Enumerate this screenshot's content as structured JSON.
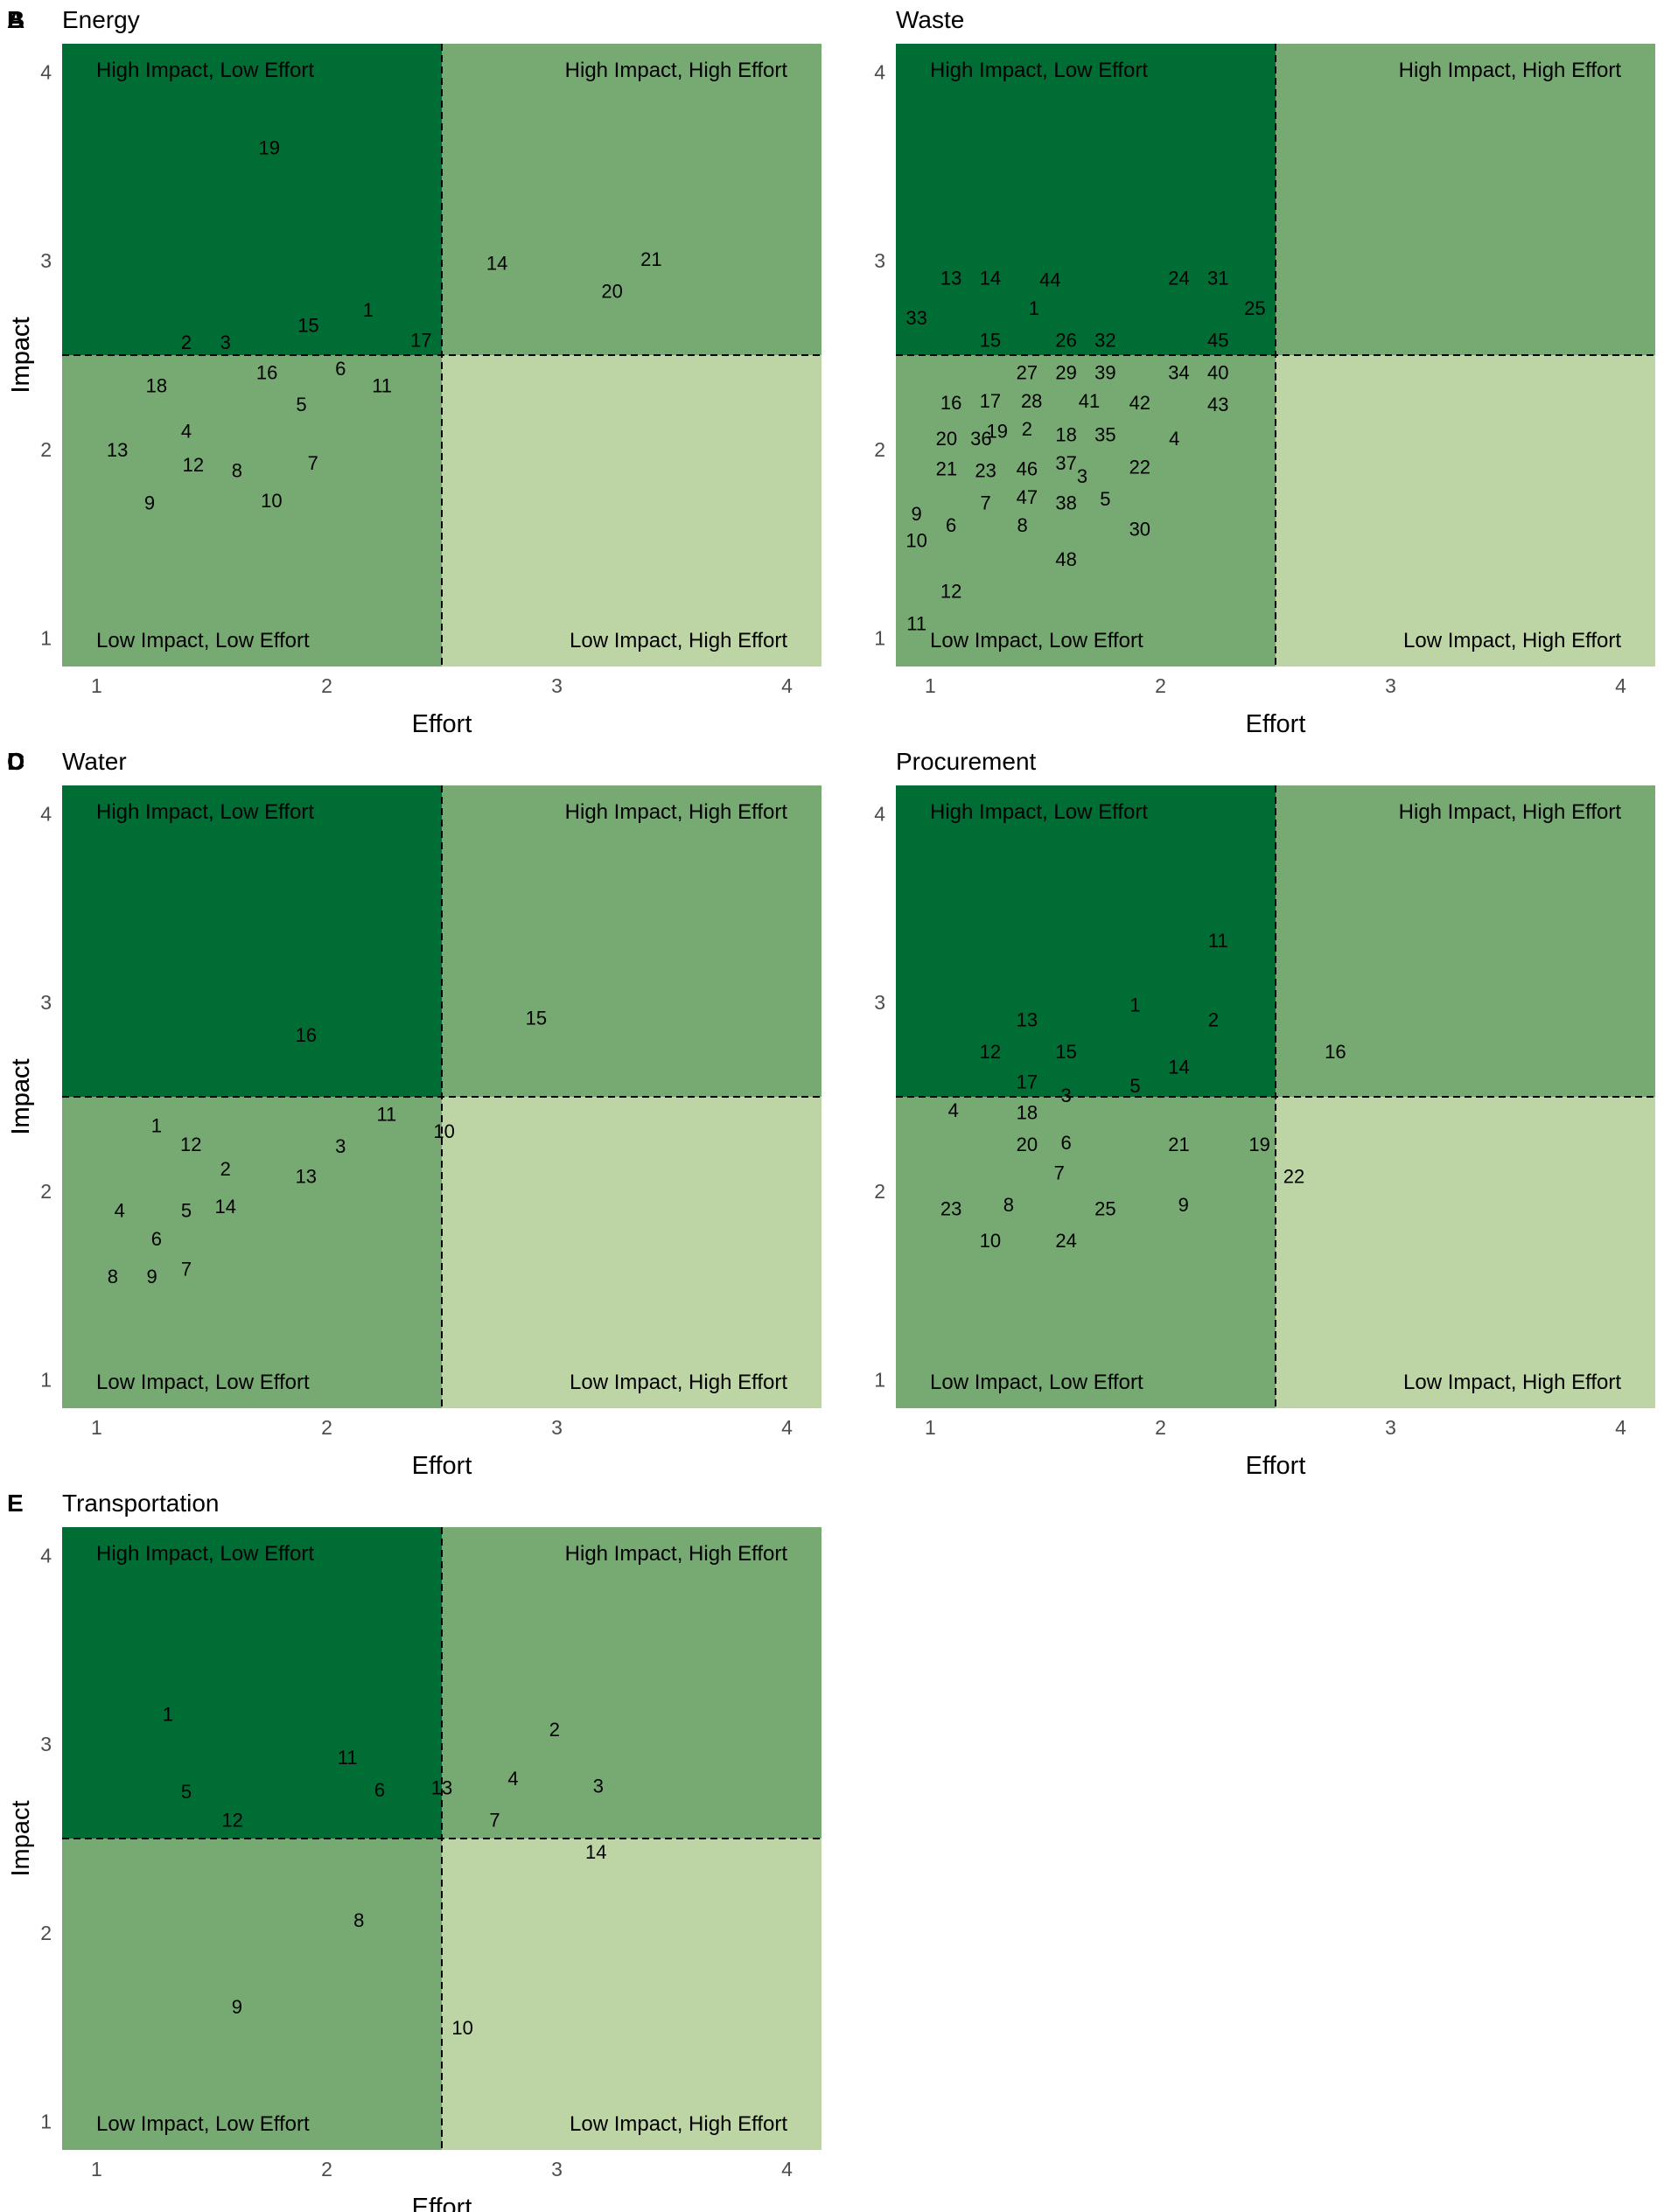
{
  "figure": {
    "colors": {
      "high_impact_low_effort": "#006d34",
      "high_impact_high_effort": "#77a972",
      "low_impact_low_effort": "#77a972",
      "low_impact_high_effort": "#bdd5a5",
      "divider": "#000000",
      "label_text": "#000000",
      "tick_text": "#4d4d4d"
    },
    "quadrant_labels": {
      "high_impact_low_effort": "High Impact, Low Effort",
      "high_impact_high_effort": "High Impact, High Effort",
      "low_impact_low_effort": "Low Impact, Low Effort",
      "low_impact_high_effort": "Low Impact, High Effort"
    }
  },
  "chart_data": [
    {
      "panel": "A",
      "title": "Energy",
      "type": "scatter",
      "xlabel": "Effort",
      "ylabel": "Impact",
      "xlim": [
        0.85,
        4.15
      ],
      "ylim": [
        0.85,
        4.15
      ],
      "xticks": [
        "1",
        "2",
        "3",
        "4"
      ],
      "yticks": [
        "1",
        "2",
        "3",
        "4"
      ],
      "x_divider": 2.5,
      "y_divider": 2.5,
      "grid": false,
      "points": [
        {
          "label": "1",
          "x": 2.18,
          "y": 2.74
        },
        {
          "label": "2",
          "x": 1.39,
          "y": 2.57
        },
        {
          "label": "3",
          "x": 1.56,
          "y": 2.57
        },
        {
          "label": "4",
          "x": 1.39,
          "y": 2.1
        },
        {
          "label": "5",
          "x": 1.89,
          "y": 2.24
        },
        {
          "label": "6",
          "x": 2.06,
          "y": 2.43
        },
        {
          "label": "7",
          "x": 1.94,
          "y": 1.93
        },
        {
          "label": "8",
          "x": 1.61,
          "y": 1.89
        },
        {
          "label": "9",
          "x": 1.23,
          "y": 1.72
        },
        {
          "label": "10",
          "x": 1.76,
          "y": 1.73
        },
        {
          "label": "11",
          "x": 2.24,
          "y": 2.34
        },
        {
          "label": "12",
          "x": 1.42,
          "y": 1.92
        },
        {
          "label": "13",
          "x": 1.09,
          "y": 2.0
        },
        {
          "label": "14",
          "x": 2.74,
          "y": 2.99
        },
        {
          "label": "15",
          "x": 1.92,
          "y": 2.66
        },
        {
          "label": "16",
          "x": 1.74,
          "y": 2.41
        },
        {
          "label": "17",
          "x": 2.41,
          "y": 2.58
        },
        {
          "label": "18",
          "x": 1.26,
          "y": 2.34
        },
        {
          "label": "19",
          "x": 1.75,
          "y": 3.6
        },
        {
          "label": "20",
          "x": 3.24,
          "y": 2.84
        },
        {
          "label": "21",
          "x": 3.41,
          "y": 3.01
        }
      ]
    },
    {
      "panel": "B",
      "title": "Waste",
      "type": "scatter",
      "xlabel": "Effort",
      "ylabel": "Impact",
      "xlim": [
        0.85,
        4.15
      ],
      "ylim": [
        0.85,
        4.15
      ],
      "xticks": [
        "1",
        "2",
        "3",
        "4"
      ],
      "yticks": [
        "1",
        "2",
        "3",
        "4"
      ],
      "x_divider": 2.5,
      "y_divider": 2.5,
      "grid": false,
      "points": [
        {
          "label": "1",
          "x": 1.45,
          "y": 2.75
        },
        {
          "label": "2",
          "x": 1.42,
          "y": 2.11
        },
        {
          "label": "3",
          "x": 1.66,
          "y": 1.86
        },
        {
          "label": "4",
          "x": 2.06,
          "y": 2.06
        },
        {
          "label": "5",
          "x": 1.76,
          "y": 1.74
        },
        {
          "label": "6",
          "x": 1.09,
          "y": 1.6
        },
        {
          "label": "7",
          "x": 1.24,
          "y": 1.72
        },
        {
          "label": "8",
          "x": 1.4,
          "y": 1.6
        },
        {
          "label": "9",
          "x": 0.94,
          "y": 1.66
        },
        {
          "label": "10",
          "x": 0.94,
          "y": 1.52
        },
        {
          "label": "11",
          "x": 0.94,
          "y": 1.08
        },
        {
          "label": "12",
          "x": 1.09,
          "y": 1.25
        },
        {
          "label": "13",
          "x": 1.09,
          "y": 2.91
        },
        {
          "label": "14",
          "x": 1.26,
          "y": 2.91
        },
        {
          "label": "15",
          "x": 1.26,
          "y": 2.58
        },
        {
          "label": "16",
          "x": 1.09,
          "y": 2.25
        },
        {
          "label": "17",
          "x": 1.26,
          "y": 2.26
        },
        {
          "label": "18",
          "x": 1.59,
          "y": 2.08
        },
        {
          "label": "19",
          "x": 1.29,
          "y": 2.1
        },
        {
          "label": "20",
          "x": 1.07,
          "y": 2.06
        },
        {
          "label": "21",
          "x": 1.07,
          "y": 1.9
        },
        {
          "label": "22",
          "x": 1.91,
          "y": 1.91
        },
        {
          "label": "23",
          "x": 1.24,
          "y": 1.89
        },
        {
          "label": "24",
          "x": 2.08,
          "y": 2.91
        },
        {
          "label": "25",
          "x": 2.41,
          "y": 2.75
        },
        {
          "label": "26",
          "x": 1.59,
          "y": 2.58
        },
        {
          "label": "27",
          "x": 1.42,
          "y": 2.41
        },
        {
          "label": "28",
          "x": 1.44,
          "y": 2.26
        },
        {
          "label": "29",
          "x": 1.59,
          "y": 2.41
        },
        {
          "label": "30",
          "x": 1.91,
          "y": 1.58
        },
        {
          "label": "31",
          "x": 2.25,
          "y": 2.91
        },
        {
          "label": "32",
          "x": 1.76,
          "y": 2.58
        },
        {
          "label": "33",
          "x": 0.94,
          "y": 2.7
        },
        {
          "label": "34",
          "x": 2.08,
          "y": 2.41
        },
        {
          "label": "35",
          "x": 1.76,
          "y": 2.08
        },
        {
          "label": "36",
          "x": 1.22,
          "y": 2.06
        },
        {
          "label": "37",
          "x": 1.59,
          "y": 1.93
        },
        {
          "label": "38",
          "x": 1.59,
          "y": 1.72
        },
        {
          "label": "39",
          "x": 1.76,
          "y": 2.41
        },
        {
          "label": "40",
          "x": 2.25,
          "y": 2.41
        },
        {
          "label": "41",
          "x": 1.69,
          "y": 2.26
        },
        {
          "label": "42",
          "x": 1.91,
          "y": 2.25
        },
        {
          "label": "43",
          "x": 2.25,
          "y": 2.24
        },
        {
          "label": "44",
          "x": 1.52,
          "y": 2.9
        },
        {
          "label": "45",
          "x": 2.25,
          "y": 2.58
        },
        {
          "label": "46",
          "x": 1.42,
          "y": 1.9
        },
        {
          "label": "47",
          "x": 1.42,
          "y": 1.75
        },
        {
          "label": "48",
          "x": 1.59,
          "y": 1.42
        }
      ]
    },
    {
      "panel": "C",
      "title": "Water",
      "type": "scatter",
      "xlabel": "Effort",
      "ylabel": "Impact",
      "xlim": [
        0.85,
        4.15
      ],
      "ylim": [
        0.85,
        4.15
      ],
      "xticks": [
        "1",
        "2",
        "3",
        "4"
      ],
      "yticks": [
        "1",
        "2",
        "3",
        "4"
      ],
      "x_divider": 2.5,
      "y_divider": 2.5,
      "grid": false,
      "points": [
        {
          "label": "1",
          "x": 1.26,
          "y": 2.35
        },
        {
          "label": "2",
          "x": 1.56,
          "y": 2.12
        },
        {
          "label": "3",
          "x": 2.06,
          "y": 2.24
        },
        {
          "label": "4",
          "x": 1.1,
          "y": 1.9
        },
        {
          "label": "5",
          "x": 1.39,
          "y": 1.9
        },
        {
          "label": "6",
          "x": 1.26,
          "y": 1.75
        },
        {
          "label": "7",
          "x": 1.39,
          "y": 1.59
        },
        {
          "label": "8",
          "x": 1.07,
          "y": 1.55
        },
        {
          "label": "9",
          "x": 1.24,
          "y": 1.55
        },
        {
          "label": "10",
          "x": 2.51,
          "y": 2.32
        },
        {
          "label": "11",
          "x": 2.26,
          "y": 2.41
        },
        {
          "label": "12",
          "x": 1.41,
          "y": 2.25
        },
        {
          "label": "13",
          "x": 1.91,
          "y": 2.08
        },
        {
          "label": "14",
          "x": 1.56,
          "y": 1.92
        },
        {
          "label": "15",
          "x": 2.91,
          "y": 2.92
        },
        {
          "label": "16",
          "x": 1.91,
          "y": 2.83
        }
      ]
    },
    {
      "panel": "D",
      "title": "Procurement",
      "type": "scatter",
      "xlabel": "Effort",
      "ylabel": "Impact",
      "xlim": [
        0.85,
        4.15
      ],
      "ylim": [
        0.85,
        4.15
      ],
      "xticks": [
        "1",
        "2",
        "3",
        "4"
      ],
      "yticks": [
        "1",
        "2",
        "3",
        "4"
      ],
      "x_divider": 2.5,
      "y_divider": 2.5,
      "grid": false,
      "points": [
        {
          "label": "1",
          "x": 1.89,
          "y": 2.99
        },
        {
          "label": "2",
          "x": 2.23,
          "y": 2.91
        },
        {
          "label": "3",
          "x": 1.59,
          "y": 2.51
        },
        {
          "label": "4",
          "x": 1.1,
          "y": 2.43
        },
        {
          "label": "5",
          "x": 1.89,
          "y": 2.56
        },
        {
          "label": "6",
          "x": 1.59,
          "y": 2.26
        },
        {
          "label": "7",
          "x": 1.56,
          "y": 2.1
        },
        {
          "label": "8",
          "x": 1.34,
          "y": 1.93
        },
        {
          "label": "9",
          "x": 2.1,
          "y": 1.93
        },
        {
          "label": "10",
          "x": 1.26,
          "y": 1.74
        },
        {
          "label": "11",
          "x": 2.25,
          "y": 3.33
        },
        {
          "label": "12",
          "x": 1.26,
          "y": 2.74
        },
        {
          "label": "13",
          "x": 1.42,
          "y": 2.91
        },
        {
          "label": "14",
          "x": 2.08,
          "y": 2.66
        },
        {
          "label": "15",
          "x": 1.59,
          "y": 2.74
        },
        {
          "label": "16",
          "x": 2.76,
          "y": 2.74
        },
        {
          "label": "17",
          "x": 1.42,
          "y": 2.58
        },
        {
          "label": "18",
          "x": 1.42,
          "y": 2.42
        },
        {
          "label": "19",
          "x": 2.43,
          "y": 2.25
        },
        {
          "label": "20",
          "x": 1.42,
          "y": 2.25
        },
        {
          "label": "21",
          "x": 2.08,
          "y": 2.25
        },
        {
          "label": "22",
          "x": 2.58,
          "y": 2.08
        },
        {
          "label": "23",
          "x": 1.09,
          "y": 1.91
        },
        {
          "label": "24",
          "x": 1.59,
          "y": 1.74
        },
        {
          "label": "25",
          "x": 1.76,
          "y": 1.91
        }
      ]
    },
    {
      "panel": "E",
      "title": "Transportation",
      "type": "scatter",
      "xlabel": "Effort",
      "ylabel": "Impact",
      "xlim": [
        0.85,
        4.15
      ],
      "ylim": [
        0.85,
        4.15
      ],
      "xticks": [
        "1",
        "2",
        "3",
        "4"
      ],
      "yticks": [
        "1",
        "2",
        "3",
        "4"
      ],
      "x_divider": 2.5,
      "y_divider": 2.5,
      "grid": false,
      "points": [
        {
          "label": "1",
          "x": 1.31,
          "y": 3.16
        },
        {
          "label": "2",
          "x": 2.99,
          "y": 3.08
        },
        {
          "label": "3",
          "x": 3.18,
          "y": 2.78
        },
        {
          "label": "4",
          "x": 2.81,
          "y": 2.82
        },
        {
          "label": "5",
          "x": 1.39,
          "y": 2.75
        },
        {
          "label": "6",
          "x": 2.23,
          "y": 2.76
        },
        {
          "label": "7",
          "x": 2.73,
          "y": 2.6
        },
        {
          "label": "8",
          "x": 2.14,
          "y": 2.07
        },
        {
          "label": "9",
          "x": 1.61,
          "y": 1.61
        },
        {
          "label": "10",
          "x": 2.59,
          "y": 1.5
        },
        {
          "label": "11",
          "x": 2.09,
          "y": 2.93
        },
        {
          "label": "12",
          "x": 1.59,
          "y": 2.6
        },
        {
          "label": "13",
          "x": 2.5,
          "y": 2.77
        },
        {
          "label": "14",
          "x": 3.17,
          "y": 2.43
        }
      ]
    }
  ]
}
